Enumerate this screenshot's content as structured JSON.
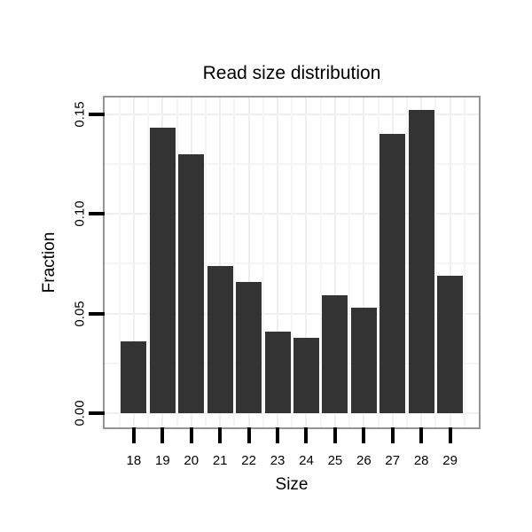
{
  "chart_data": {
    "type": "bar",
    "title": "Read size distribution",
    "xlabel": "Size",
    "ylabel": "Fraction",
    "categories": [
      "18",
      "19",
      "20",
      "21",
      "22",
      "23",
      "24",
      "25",
      "26",
      "27",
      "28",
      "29"
    ],
    "values": [
      0.036,
      0.143,
      0.13,
      0.074,
      0.066,
      0.041,
      0.038,
      0.059,
      0.053,
      0.14,
      0.152,
      0.069
    ],
    "y_ticks": {
      "values": [
        0,
        0.05,
        0.1,
        0.15
      ],
      "labels": [
        "0.00",
        "0.05",
        "0.10",
        "0.15"
      ]
    },
    "y_minor_gridlines": [
      0.025,
      0.075,
      0.125
    ],
    "ylim": [
      0,
      0.158
    ],
    "grid": "major and minor, very light gray, on white panel",
    "legend": "none",
    "bar_color": "#333333",
    "panel_border_color": "#949494",
    "tick_color": "#000000"
  }
}
